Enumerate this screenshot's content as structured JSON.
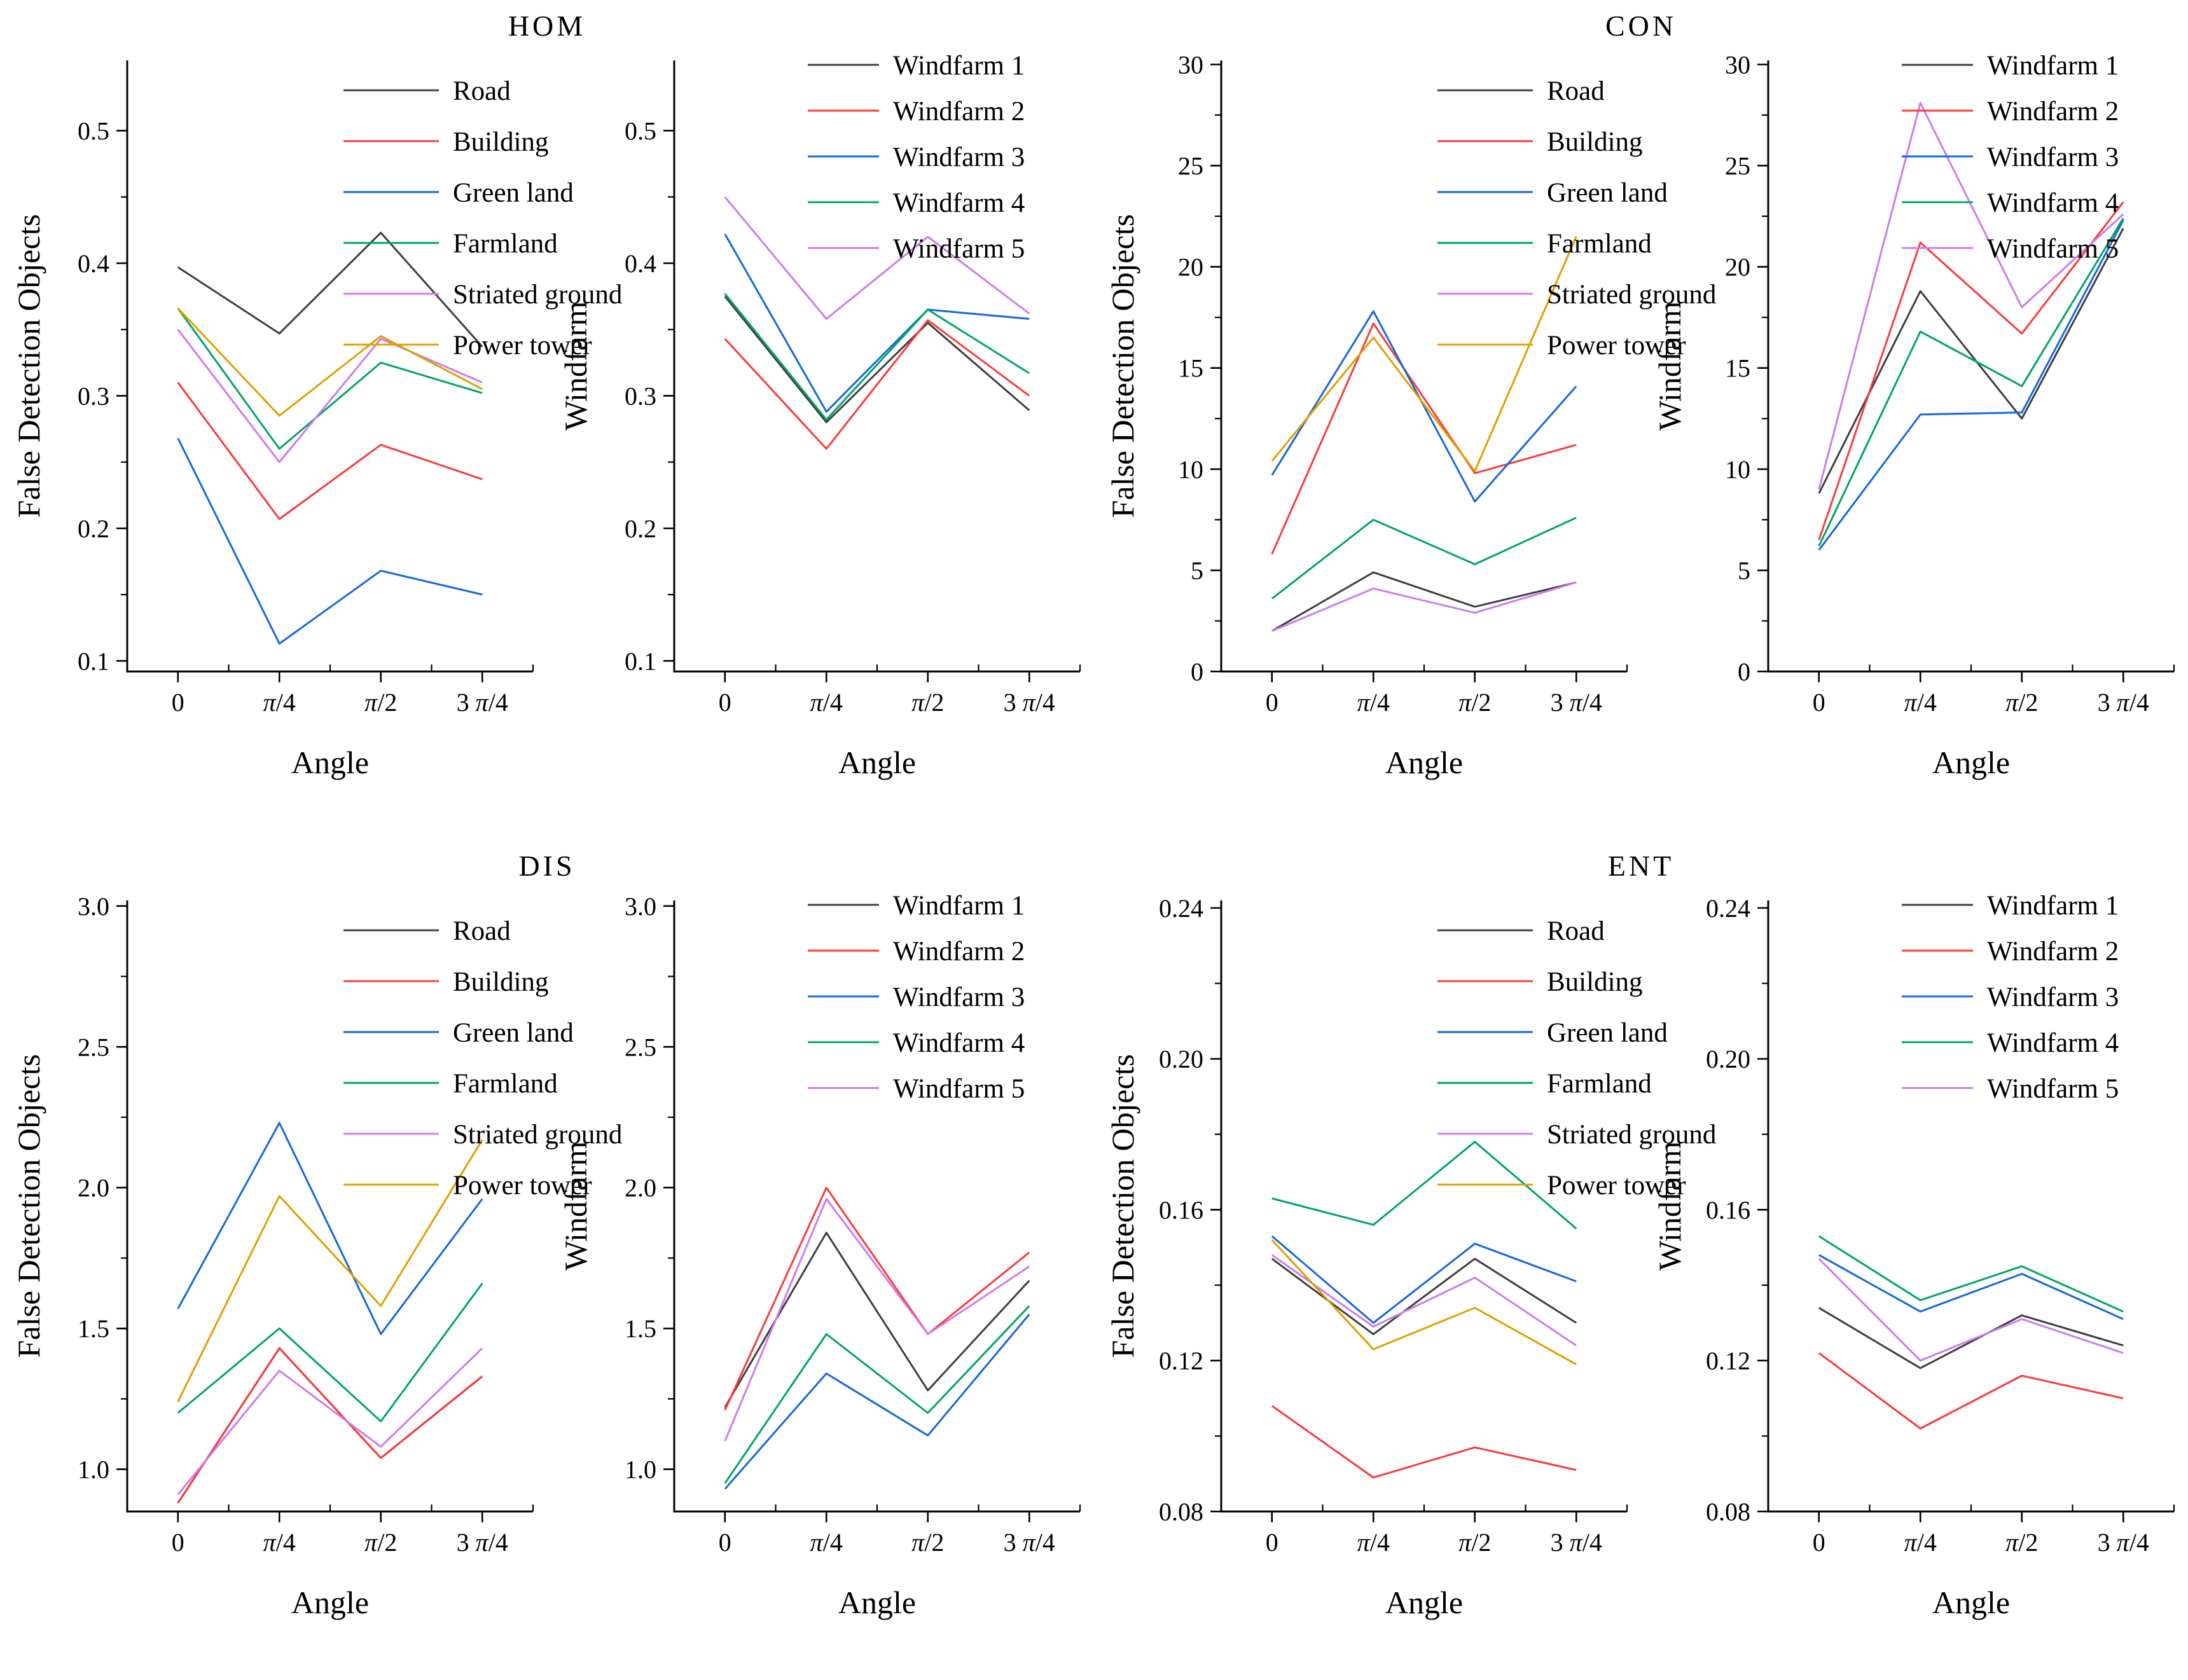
{
  "panels": [
    {
      "title": "HOM"
    },
    {
      "title": "CON"
    },
    {
      "title": "DIS"
    },
    {
      "title": "ENT"
    }
  ],
  "colors": {
    "road": "#3f3f3f",
    "building": "#fb3b3b",
    "green_land": "#1568dd",
    "farmland": "#00a566",
    "striated_ground": "#cf7bec",
    "power_tower": "#dfa000",
    "windfarm1": "#3f3f3f",
    "windfarm2": "#fb3b3b",
    "windfarm3": "#1568dd",
    "windfarm4": "#00a566",
    "windfarm5": "#cf7bec"
  },
  "chart_data": [
    {
      "panel": "HOM",
      "position": "left",
      "type": "line",
      "xlabel": "Angle",
      "ylabel": "False Detection Objects",
      "x_categories": [
        "0",
        "π/4",
        "π/2",
        "3 π/4"
      ],
      "ylim": [
        0.092,
        0.553
      ],
      "yticks": [
        0.1,
        0.2,
        0.3,
        0.4,
        0.5
      ],
      "ytick_labels": [
        "0.1",
        "0.2",
        "0.3",
        "0.4",
        "0.5"
      ],
      "yminor": [
        0.15,
        0.25,
        0.35,
        0.45
      ],
      "grid": false,
      "legend_position": "inside-top-right",
      "series": [
        {
          "name": "Road",
          "color": "#3f3f3f",
          "values": [
            0.397,
            0.347,
            0.423,
            0.337
          ]
        },
        {
          "name": "Building",
          "color": "#fb3b3b",
          "values": [
            0.31,
            0.207,
            0.263,
            0.237
          ]
        },
        {
          "name": "Green land",
          "color": "#1568dd",
          "values": [
            0.268,
            0.113,
            0.168,
            0.15
          ]
        },
        {
          "name": "Farmland",
          "color": "#00a566",
          "values": [
            0.366,
            0.26,
            0.325,
            0.302
          ]
        },
        {
          "name": "Striated ground",
          "color": "#cf7bec",
          "values": [
            0.35,
            0.25,
            0.343,
            0.31
          ]
        },
        {
          "name": "Power tower",
          "color": "#dfa000",
          "values": [
            0.366,
            0.285,
            0.345,
            0.305
          ]
        }
      ]
    },
    {
      "panel": "HOM",
      "position": "right",
      "type": "line",
      "xlabel": "Angle",
      "ylabel": "Windfarm",
      "x_categories": [
        "0",
        "π/4",
        "π/2",
        "3 π/4"
      ],
      "ylim": [
        0.092,
        0.553
      ],
      "yticks": [
        0.1,
        0.2,
        0.3,
        0.4,
        0.5
      ],
      "ytick_labels": [
        "0.1",
        "0.2",
        "0.3",
        "0.4",
        "0.5"
      ],
      "yminor": [
        0.15,
        0.25,
        0.35,
        0.45
      ],
      "grid": false,
      "legend_position": "inside-top-right",
      "series": [
        {
          "name": "Windfarm 1",
          "color": "#3f3f3f",
          "values": [
            0.375,
            0.28,
            0.355,
            0.289
          ]
        },
        {
          "name": "Windfarm 2",
          "color": "#fb3b3b",
          "values": [
            0.343,
            0.26,
            0.357,
            0.3
          ]
        },
        {
          "name": "Windfarm 3",
          "color": "#1568dd",
          "values": [
            0.422,
            0.288,
            0.365,
            0.358
          ]
        },
        {
          "name": "Windfarm 4",
          "color": "#00a566",
          "values": [
            0.377,
            0.282,
            0.365,
            0.317
          ]
        },
        {
          "name": "Windfarm 5",
          "color": "#cf7bec",
          "values": [
            0.45,
            0.358,
            0.42,
            0.362
          ]
        }
      ]
    },
    {
      "panel": "CON",
      "position": "left",
      "type": "line",
      "xlabel": "Angle",
      "ylabel": "False Detection Objects",
      "x_categories": [
        "0",
        "π/4",
        "π/2",
        "3 π/4"
      ],
      "ylim": [
        0,
        30.2
      ],
      "yticks": [
        0,
        5,
        10,
        15,
        20,
        25,
        30
      ],
      "ytick_labels": [
        "0",
        "5",
        "10",
        "15",
        "20",
        "25",
        "30"
      ],
      "yminor": [
        2.5,
        7.5,
        12.5,
        17.5,
        22.5,
        27.5
      ],
      "grid": false,
      "legend_position": "inside-top-right",
      "series": [
        {
          "name": "Road",
          "color": "#3f3f3f",
          "values": [
            2.0,
            4.9,
            3.2,
            4.4
          ]
        },
        {
          "name": "Building",
          "color": "#fb3b3b",
          "values": [
            5.8,
            17.2,
            9.8,
            11.2
          ]
        },
        {
          "name": "Green land",
          "color": "#1568dd",
          "values": [
            9.7,
            17.8,
            8.4,
            14.1
          ]
        },
        {
          "name": "Farmland",
          "color": "#00a566",
          "values": [
            3.6,
            7.5,
            5.3,
            7.6
          ]
        },
        {
          "name": "Striated ground",
          "color": "#cf7bec",
          "values": [
            2.0,
            4.1,
            2.9,
            4.4
          ]
        },
        {
          "name": "Power tower",
          "color": "#dfa000",
          "values": [
            10.4,
            16.5,
            9.9,
            21.5
          ]
        }
      ]
    },
    {
      "panel": "CON",
      "position": "right",
      "type": "line",
      "xlabel": "Angle",
      "ylabel": "Windfarm",
      "x_categories": [
        "0",
        "π/4",
        "π/2",
        "3 π/4"
      ],
      "ylim": [
        0,
        30.2
      ],
      "yticks": [
        0,
        5,
        10,
        15,
        20,
        25,
        30
      ],
      "ytick_labels": [
        "0",
        "5",
        "10",
        "15",
        "20",
        "25",
        "30"
      ],
      "yminor": [
        2.5,
        7.5,
        12.5,
        17.5,
        22.5,
        27.5
      ],
      "grid": false,
      "legend_position": "inside-top-right",
      "series": [
        {
          "name": "Windfarm 1",
          "color": "#3f3f3f",
          "values": [
            8.8,
            18.8,
            12.5,
            21.9
          ]
        },
        {
          "name": "Windfarm 2",
          "color": "#fb3b3b",
          "values": [
            6.5,
            21.2,
            16.7,
            23.2
          ]
        },
        {
          "name": "Windfarm 3",
          "color": "#1568dd",
          "values": [
            6.0,
            12.7,
            12.8,
            22.3
          ]
        },
        {
          "name": "Windfarm 4",
          "color": "#00a566",
          "values": [
            6.2,
            16.8,
            14.1,
            22.4
          ]
        },
        {
          "name": "Windfarm 5",
          "color": "#cf7bec",
          "values": [
            9.0,
            28.1,
            18.0,
            22.6
          ]
        }
      ]
    },
    {
      "panel": "DIS",
      "position": "left",
      "type": "line",
      "xlabel": "Angle",
      "ylabel": "False Detection Objects",
      "x_categories": [
        "0",
        "π/4",
        "π/2",
        "3 π/4"
      ],
      "ylim": [
        0.85,
        3.02
      ],
      "yticks": [
        1.0,
        1.5,
        2.0,
        2.5,
        3.0
      ],
      "ytick_labels": [
        "1.0",
        "1.5",
        "2.0",
        "2.5",
        "3.0"
      ],
      "yminor": [
        1.25,
        1.75,
        2.25,
        2.75
      ],
      "grid": false,
      "legend_position": "inside-top-right",
      "series": [
        {
          "name": "Road",
          "color": "#3f3f3f",
          "values": [
            0.88,
            1.43,
            1.04,
            1.33
          ]
        },
        {
          "name": "Building",
          "color": "#fb3b3b",
          "values": [
            0.88,
            1.43,
            1.04,
            1.33
          ]
        },
        {
          "name": "Green land",
          "color": "#1568dd",
          "values": [
            1.57,
            2.23,
            1.48,
            1.96
          ]
        },
        {
          "name": "Farmland",
          "color": "#00a566",
          "values": [
            1.2,
            1.5,
            1.17,
            1.66
          ]
        },
        {
          "name": "Striated ground",
          "color": "#cf7bec",
          "values": [
            0.91,
            1.35,
            1.08,
            1.43
          ]
        },
        {
          "name": "Power tower",
          "color": "#dfa000",
          "values": [
            1.24,
            1.97,
            1.58,
            2.17
          ]
        }
      ]
    },
    {
      "panel": "DIS",
      "position": "right",
      "type": "line",
      "xlabel": "Angle",
      "ylabel": "Windfarm",
      "x_categories": [
        "0",
        "π/4",
        "π/2",
        "3 π/4"
      ],
      "ylim": [
        0.85,
        3.02
      ],
      "yticks": [
        1.0,
        1.5,
        2.0,
        2.5,
        3.0
      ],
      "ytick_labels": [
        "1.0",
        "1.5",
        "2.0",
        "2.5",
        "3.0"
      ],
      "yminor": [
        1.25,
        1.75,
        2.25,
        2.75
      ],
      "grid": false,
      "legend_position": "inside-top-right",
      "series": [
        {
          "name": "Windfarm 1",
          "color": "#3f3f3f",
          "values": [
            1.22,
            1.84,
            1.28,
            1.67
          ]
        },
        {
          "name": "Windfarm 2",
          "color": "#fb3b3b",
          "values": [
            1.21,
            2.0,
            1.48,
            1.77
          ]
        },
        {
          "name": "Windfarm 3",
          "color": "#1568dd",
          "values": [
            0.93,
            1.34,
            1.12,
            1.55
          ]
        },
        {
          "name": "Windfarm 4",
          "color": "#00a566",
          "values": [
            0.95,
            1.48,
            1.2,
            1.58
          ]
        },
        {
          "name": "Windfarm 5",
          "color": "#cf7bec",
          "values": [
            1.1,
            1.96,
            1.48,
            1.72
          ]
        }
      ]
    },
    {
      "panel": "ENT",
      "position": "left",
      "type": "line",
      "xlabel": "Angle",
      "ylabel": "False Detection Objects",
      "x_categories": [
        "0",
        "π/4",
        "π/2",
        "3 π/4"
      ],
      "ylim": [
        0.08,
        0.242
      ],
      "yticks": [
        0.08,
        0.12,
        0.16,
        0.2,
        0.24
      ],
      "ytick_labels": [
        "0.08",
        "0.12",
        "0.16",
        "0.20",
        "0.24"
      ],
      "yminor": [
        0.1,
        0.14,
        0.18,
        0.22
      ],
      "grid": false,
      "legend_position": "inside-top-right",
      "series": [
        {
          "name": "Road",
          "color": "#3f3f3f",
          "values": [
            0.147,
            0.127,
            0.147,
            0.13
          ]
        },
        {
          "name": "Building",
          "color": "#fb3b3b",
          "values": [
            0.108,
            0.089,
            0.097,
            0.091
          ]
        },
        {
          "name": "Green land",
          "color": "#1568dd",
          "values": [
            0.153,
            0.13,
            0.151,
            0.141
          ]
        },
        {
          "name": "Farmland",
          "color": "#00a566",
          "values": [
            0.163,
            0.156,
            0.178,
            0.155
          ]
        },
        {
          "name": "Striated ground",
          "color": "#cf7bec",
          "values": [
            0.148,
            0.129,
            0.142,
            0.124
          ]
        },
        {
          "name": "Power tower",
          "color": "#dfa000",
          "values": [
            0.152,
            0.123,
            0.134,
            0.119
          ]
        }
      ]
    },
    {
      "panel": "ENT",
      "position": "right",
      "type": "line",
      "xlabel": "Angle",
      "ylabel": "Windfarm",
      "x_categories": [
        "0",
        "π/4",
        "π/2",
        "3 π/4"
      ],
      "ylim": [
        0.08,
        0.242
      ],
      "yticks": [
        0.08,
        0.12,
        0.16,
        0.2,
        0.24
      ],
      "ytick_labels": [
        "0.08",
        "0.12",
        "0.16",
        "0.20",
        "0.24"
      ],
      "yminor": [
        0.1,
        0.14,
        0.18,
        0.22
      ],
      "grid": false,
      "legend_position": "inside-top-right",
      "series": [
        {
          "name": "Windfarm 1",
          "color": "#3f3f3f",
          "values": [
            0.134,
            0.118,
            0.132,
            0.124
          ]
        },
        {
          "name": "Windfarm 2",
          "color": "#fb3b3b",
          "values": [
            0.122,
            0.102,
            0.116,
            0.11
          ]
        },
        {
          "name": "Windfarm 3",
          "color": "#1568dd",
          "values": [
            0.148,
            0.133,
            0.143,
            0.131
          ]
        },
        {
          "name": "Windfarm 4",
          "color": "#00a566",
          "values": [
            0.153,
            0.136,
            0.145,
            0.133
          ]
        },
        {
          "name": "Windfarm 5",
          "color": "#cf7bec",
          "values": [
            0.147,
            0.12,
            0.131,
            0.122
          ]
        }
      ]
    }
  ]
}
